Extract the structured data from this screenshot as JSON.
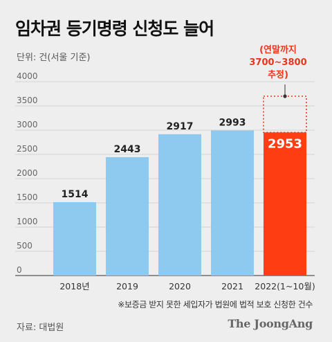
{
  "title": "임차권 등기명령 신청도 늘어",
  "unit_text": "단위: 건(서울 기준)",
  "footnote": "※보증금 받지 못한 세입자가 법원에 법적 보호 신청한 건수",
  "source": "자료: 대법원",
  "brand": "The JoongAng",
  "annotation": [
    "(연말까지",
    "3700~3800",
    "추정)"
  ],
  "colors": {
    "bar": "#8ecaf0",
    "highlight": "#ff3d13",
    "annotation": "#e8361c",
    "grid": "#d4d4d4",
    "background": "#eeeeee"
  },
  "chart_data": {
    "type": "bar",
    "categories": [
      "2018년",
      "2019",
      "2020",
      "2021",
      "2022(1~10월)"
    ],
    "values": [
      1514,
      2443,
      2917,
      2993,
      2953
    ],
    "value_labels": [
      "1514",
      "2443",
      "2917",
      "2993",
      "2953"
    ],
    "highlight_index": 4,
    "projected_range": [
      3700,
      3800
    ],
    "title": "임차권 등기명령 신청도 늘어",
    "xlabel": "",
    "ylabel": "",
    "ylim": [
      0,
      4000
    ],
    "yticks": [
      0,
      500,
      1000,
      1500,
      2000,
      2500,
      3000,
      3500,
      4000
    ],
    "grid": true,
    "legend": "none"
  }
}
